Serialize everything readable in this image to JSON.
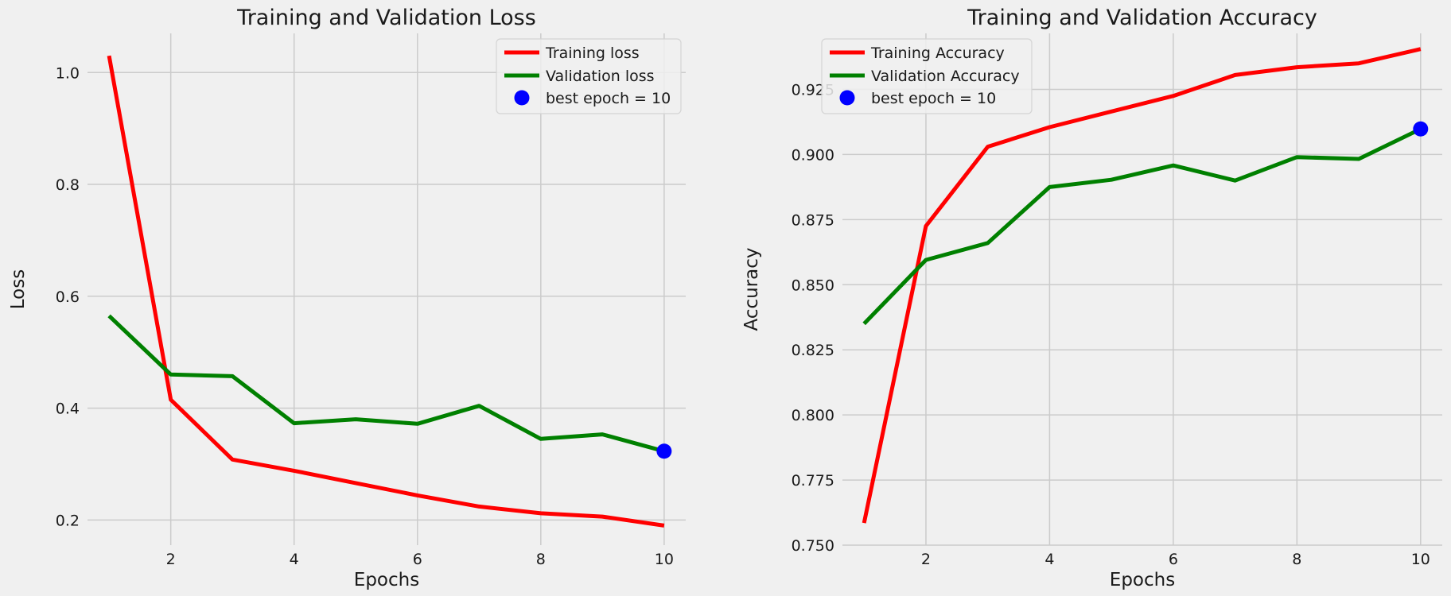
{
  "chart_data": [
    {
      "type": "line",
      "title": "Training and Validation Loss",
      "xlabel": "Epochs",
      "ylabel": "Loss",
      "x": [
        1,
        2,
        3,
        4,
        5,
        6,
        7,
        8,
        9,
        10
      ],
      "xlim": [
        0.65,
        10.35
      ],
      "ylim": [
        0.155,
        1.07
      ],
      "xticks": [
        2,
        4,
        6,
        8,
        10
      ],
      "yticks": [
        0.2,
        0.4,
        0.6,
        0.8,
        1.0
      ],
      "xtick_labels": [
        "2",
        "4",
        "6",
        "8",
        "10"
      ],
      "ytick_labels": [
        "0.2",
        "0.4",
        "0.6",
        "0.8",
        "1.0"
      ],
      "grid": true,
      "legend_position": "upper right",
      "series": [
        {
          "name": "Training loss",
          "color": "#ff0000",
          "values": [
            1.03,
            0.415,
            0.308,
            0.288,
            0.266,
            0.244,
            0.224,
            0.212,
            0.206,
            0.19
          ]
        },
        {
          "name": "Validation loss",
          "color": "#008000",
          "values": [
            0.565,
            0.46,
            0.457,
            0.373,
            0.38,
            0.372,
            0.404,
            0.345,
            0.353,
            0.323
          ]
        }
      ],
      "best_point": {
        "name": "best epoch = 10",
        "color": "#0000ff",
        "x": 10,
        "y": 0.323
      }
    },
    {
      "type": "line",
      "title": "Training and Validation Accuracy",
      "xlabel": "Epochs",
      "ylabel": "Accuracy",
      "x": [
        1,
        2,
        3,
        4,
        5,
        6,
        7,
        8,
        9,
        10
      ],
      "xlim": [
        0.65,
        10.35
      ],
      "ylim": [
        0.75,
        0.9465
      ],
      "xticks": [
        2,
        4,
        6,
        8,
        10
      ],
      "yticks": [
        0.75,
        0.775,
        0.8,
        0.825,
        0.85,
        0.875,
        0.9,
        0.925
      ],
      "xtick_labels": [
        "2",
        "4",
        "6",
        "8",
        "10"
      ],
      "ytick_labels": [
        "0.750",
        "0.775",
        "0.800",
        "0.825",
        "0.850",
        "0.875",
        "0.900",
        "0.925"
      ],
      "grid": true,
      "legend_position": "upper left",
      "series": [
        {
          "name": "Training Accuracy",
          "color": "#ff0000",
          "values": [
            0.7585,
            0.8725,
            0.903,
            0.9105,
            0.9165,
            0.9225,
            0.9305,
            0.9335,
            0.935,
            0.9405
          ]
        },
        {
          "name": "Validation Accuracy",
          "color": "#008000",
          "values": [
            0.835,
            0.8595,
            0.866,
            0.8875,
            0.8903,
            0.8958,
            0.89,
            0.899,
            0.8983,
            0.9098
          ]
        }
      ],
      "best_point": {
        "name": "best epoch = 10",
        "color": "#0000ff",
        "x": 10,
        "y": 0.9098
      }
    }
  ]
}
